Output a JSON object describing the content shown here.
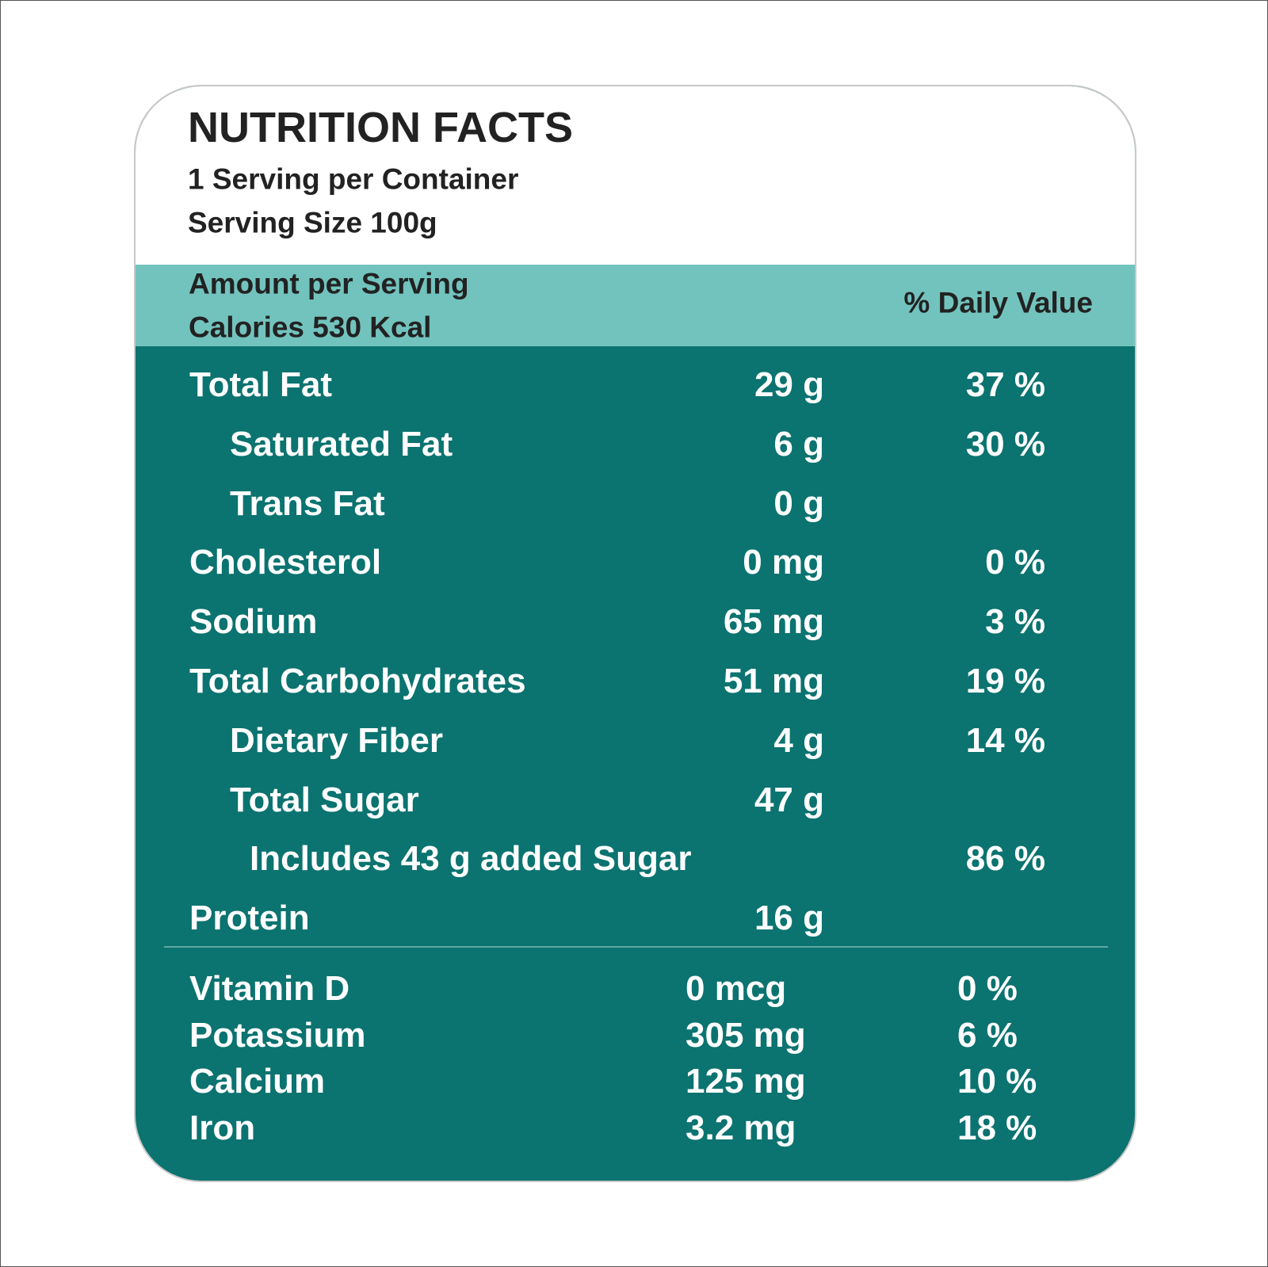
{
  "header": {
    "title": "NUTRITION FACTS",
    "servings": "1 Serving per Container",
    "serving_size": "Serving Size 100g"
  },
  "band": {
    "amount": "Amount per Serving",
    "calories": "Calories 530 Kcal",
    "daily_value": "% Daily Value"
  },
  "nutrients": [
    {
      "name": "Total Fat",
      "amount": "29 g",
      "dv": "37 %",
      "items": [
        {
          "name": "Saturated Fat",
          "amount": "6 g",
          "dv": "30 %"
        },
        {
          "name": "Trans Fat",
          "amount": "0 g"
        }
      ]
    },
    {
      "name": "Cholesterol",
      "amount": "0 mg",
      "dv": "0 %"
    },
    {
      "name": "Sodium",
      "amount": "65 mg",
      "dv": "3 %"
    },
    {
      "name": "Total Carbohydrates",
      "amount": "51 mg",
      "dv": "19 %",
      "items": [
        {
          "name": "Dietary Fiber",
          "amount": "4 g",
          "dv": "14 %"
        },
        {
          "name": "Total Sugar",
          "amount": "47 g",
          "items": [
            {
              "name": "Includes 43 g added Sugar",
              "dv": "86 %"
            }
          ]
        }
      ]
    },
    {
      "name": "Protein",
      "amount": "16 g"
    }
  ],
  "vitamins": [
    {
      "name": "Vitamin D",
      "amount": "0 mcg",
      "dv": "0 %"
    },
    {
      "name": "Potassium",
      "amount": "305 mg",
      "dv": "6 %"
    },
    {
      "name": "Calcium",
      "amount": "125 mg",
      "dv": "10 %"
    },
    {
      "name": "Iron",
      "amount": "3.2 mg",
      "dv": "18 %"
    }
  ]
}
